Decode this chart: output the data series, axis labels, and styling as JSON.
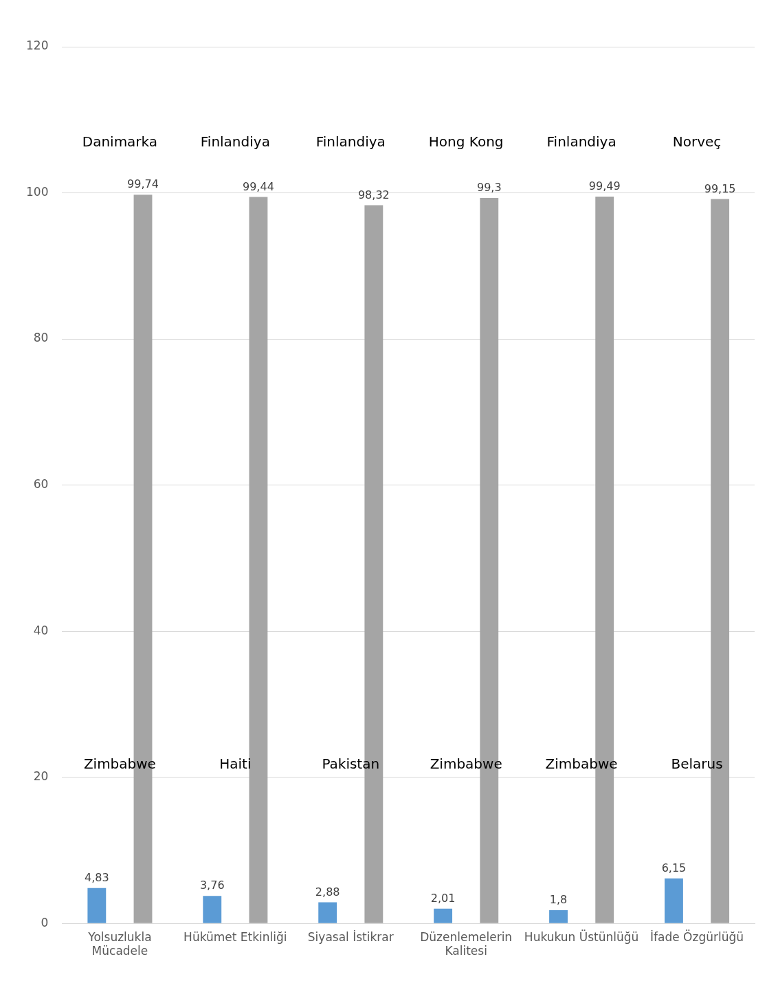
{
  "chart_data": {
    "type": "bar",
    "categories": [
      "Yolsuzlukla Mücadele",
      "Hükümet Etkinliği",
      "Siyasal İstikrar",
      "Düzenlemelerin Kalitesi",
      "Hukukun Üstünlüğü",
      "İfade Özgürlüğü"
    ],
    "series": [
      {
        "color": "#5b9bd5",
        "values": [
          4.83,
          3.76,
          2.88,
          2.01,
          1.8,
          6.15
        ],
        "value_labels": [
          "4,83",
          "3,76",
          "2,88",
          "2,01",
          "1,8",
          "6,15"
        ]
      },
      {
        "color": "#a5a5a5",
        "values": [
          99.74,
          99.44,
          98.32,
          99.3,
          99.49,
          99.15
        ],
        "value_labels": [
          "99,74",
          "99,44",
          "98,32",
          "99,3",
          "99,49",
          "99,15"
        ]
      }
    ],
    "ylim": [
      0,
      120
    ],
    "yticks": [
      0,
      20,
      40,
      60,
      80,
      100,
      120
    ],
    "grid": "y",
    "legend": false,
    "annotations": [
      "Danimarka",
      "Finlandiya",
      "Finlandiya",
      "Hong Kong",
      "Finlandiya",
      "Norveç",
      "Zimbabwe",
      "Haiti",
      "Pakistan",
      "Zimbabwe",
      "Zimbabwe",
      "Belarus"
    ]
  }
}
